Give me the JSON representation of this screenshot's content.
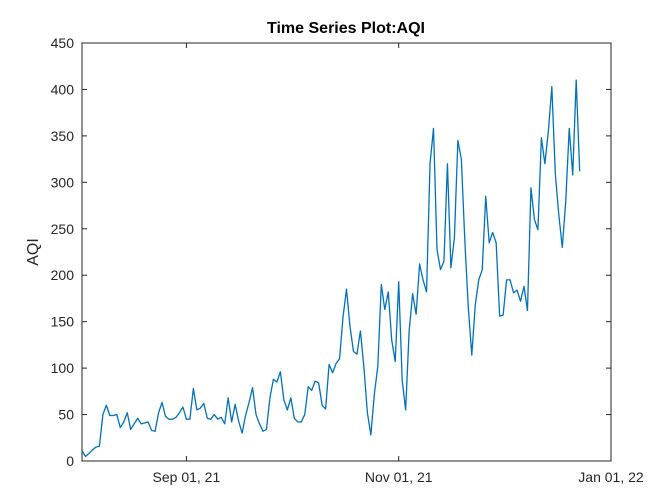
{
  "chart_data": {
    "type": "line",
    "title": "Time Series Plot:AQI",
    "xlabel": "",
    "ylabel": "AQI",
    "ylim": [
      0,
      450
    ],
    "xlim": [
      "2021-08-02",
      "2022-01-01"
    ],
    "x_ticks": [
      {
        "date": "2021-09-01",
        "label": "Sep 01, 21"
      },
      {
        "date": "2021-11-01",
        "label": "Nov 01, 21"
      },
      {
        "date": "2022-01-01",
        "label": "Jan 01, 22"
      }
    ],
    "y_ticks": [
      0,
      50,
      100,
      150,
      200,
      250,
      300,
      350,
      400,
      450
    ],
    "grid": false,
    "line_color": "#0072bd",
    "series": [
      {
        "name": "",
        "start_date": "2021-08-02",
        "values": [
          11,
          5,
          8,
          12,
          15,
          16,
          50,
          60,
          49,
          49,
          50,
          36,
          42,
          52,
          34,
          40,
          46,
          40,
          41,
          42,
          33,
          32,
          52,
          63,
          48,
          45,
          45,
          47,
          52,
          58,
          45,
          45,
          78,
          55,
          57,
          62,
          46,
          45,
          50,
          45,
          47,
          40,
          68,
          42,
          61,
          43,
          30,
          49,
          63,
          79,
          50,
          40,
          32,
          34,
          68,
          88,
          85,
          96,
          66,
          55,
          68,
          46,
          42,
          42,
          50,
          80,
          76,
          86,
          84,
          60,
          56,
          104,
          95,
          105,
          110,
          155,
          185,
          145,
          118,
          115,
          140,
          101,
          52,
          28,
          72,
          102,
          190,
          163,
          182,
          130,
          107,
          193,
          87,
          55,
          140,
          180,
          158,
          212,
          195,
          182,
          320,
          358,
          228,
          206,
          215,
          320,
          208,
          240,
          345,
          325,
          237,
          165,
          114,
          168,
          195,
          206,
          285,
          235,
          246,
          235,
          156,
          157,
          195,
          195,
          181,
          184,
          172,
          188,
          162,
          294,
          260,
          249,
          348,
          320,
          355,
          403,
          309,
          265,
          230,
          280,
          358,
          308,
          410,
          312
        ]
      }
    ]
  }
}
